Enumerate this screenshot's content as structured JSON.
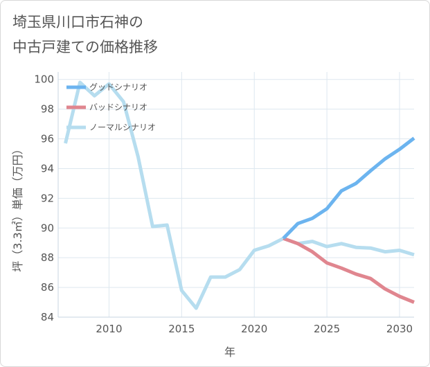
{
  "title_lines": [
    "埼玉県川口市石神の",
    "中古戸建ての価格推移"
  ],
  "chart_data": {
    "type": "line",
    "xlabel": "年",
    "ylabel": "坪（3.3㎡）単価（万円）",
    "xlim": [
      2006.5,
      2031
    ],
    "ylim": [
      84,
      100.5
    ],
    "x_ticks": [
      2010,
      2015,
      2020,
      2025,
      2030
    ],
    "y_ticks": [
      84,
      86,
      88,
      90,
      92,
      94,
      96,
      98,
      100
    ],
    "grid": true,
    "legend_position": "top-left",
    "series": [
      {
        "name": "グッドシナリオ",
        "color": "#6cb4ef",
        "points": [
          [
            2022,
            89.3
          ],
          [
            2023,
            90.3
          ],
          [
            2024,
            90.65
          ],
          [
            2025,
            91.3
          ],
          [
            2026,
            92.5
          ],
          [
            2027,
            93.0
          ],
          [
            2028,
            93.85
          ],
          [
            2029,
            94.65
          ],
          [
            2030,
            95.3
          ],
          [
            2031,
            96.05
          ]
        ]
      },
      {
        "name": "バッドシナリオ",
        "color": "#e0868f",
        "points": [
          [
            2022,
            89.3
          ],
          [
            2023,
            88.95
          ],
          [
            2024,
            88.4
          ],
          [
            2025,
            87.65
          ],
          [
            2026,
            87.3
          ],
          [
            2027,
            86.9
          ],
          [
            2028,
            86.6
          ],
          [
            2029,
            85.9
          ],
          [
            2030,
            85.4
          ],
          [
            2031,
            85.0
          ]
        ]
      },
      {
        "name": "ノーマルシナリオ",
        "color": "#b6ddef",
        "points": [
          [
            2007,
            95.7
          ],
          [
            2008,
            99.8
          ],
          [
            2009,
            98.9
          ],
          [
            2010,
            99.7
          ],
          [
            2011,
            98.5
          ],
          [
            2012,
            94.8
          ],
          [
            2013,
            90.1
          ],
          [
            2014,
            90.2
          ],
          [
            2015,
            85.8
          ],
          [
            2016,
            84.6
          ],
          [
            2017,
            86.7
          ],
          [
            2018,
            86.7
          ],
          [
            2019,
            87.2
          ],
          [
            2020,
            88.5
          ],
          [
            2021,
            88.8
          ],
          [
            2022,
            89.3
          ],
          [
            2023,
            88.95
          ],
          [
            2024,
            89.1
          ],
          [
            2025,
            88.75
          ],
          [
            2026,
            88.95
          ],
          [
            2027,
            88.7
          ],
          [
            2028,
            88.65
          ],
          [
            2029,
            88.4
          ],
          [
            2030,
            88.5
          ],
          [
            2031,
            88.2
          ]
        ]
      }
    ]
  }
}
